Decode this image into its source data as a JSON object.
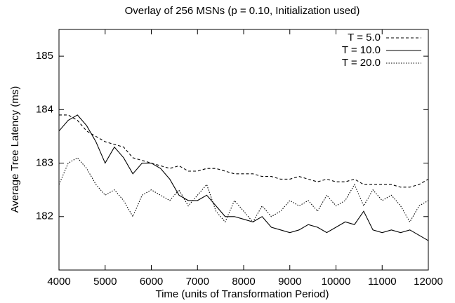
{
  "chart_data": {
    "type": "line",
    "title": "Overlay of 256 MSNs (p = 0.10, Initialization used)",
    "x_label": "Time (units of Transformation Period)",
    "y_label": "Average Tree Latency (ms)",
    "x": [
      4000,
      4200,
      4400,
      4600,
      4800,
      5000,
      5200,
      5400,
      5600,
      5800,
      6000,
      6200,
      6400,
      6600,
      6800,
      7000,
      7200,
      7400,
      7600,
      7800,
      8000,
      8200,
      8400,
      8600,
      8800,
      9000,
      9200,
      9400,
      9600,
      9800,
      10000,
      10200,
      10400,
      10600,
      10800,
      11000,
      11200,
      11400,
      11600,
      11800,
      12000
    ],
    "series": [
      {
        "name": "T = 5.0",
        "color": "#000000",
        "dash": "4,3",
        "values": [
          183.9,
          183.9,
          183.8,
          183.6,
          183.5,
          183.4,
          183.35,
          183.3,
          183.1,
          183.05,
          183.0,
          182.95,
          182.9,
          182.95,
          182.85,
          182.85,
          182.9,
          182.9,
          182.85,
          182.8,
          182.8,
          182.8,
          182.75,
          182.75,
          182.7,
          182.7,
          182.75,
          182.7,
          182.65,
          182.7,
          182.65,
          182.65,
          182.7,
          182.6,
          182.6,
          182.6,
          182.6,
          182.55,
          182.55,
          182.6,
          182.7
        ]
      },
      {
        "name": "T = 10.0",
        "color": "#000000",
        "dash": "none",
        "values": [
          183.6,
          183.8,
          183.9,
          183.7,
          183.4,
          183.0,
          183.3,
          183.1,
          182.8,
          183.0,
          183.0,
          182.9,
          182.7,
          182.4,
          182.3,
          182.3,
          182.4,
          182.2,
          182.0,
          182.0,
          181.95,
          181.9,
          182.0,
          181.8,
          181.75,
          181.7,
          181.75,
          181.85,
          181.8,
          181.7,
          181.8,
          181.9,
          181.85,
          182.1,
          181.75,
          181.7,
          181.75,
          181.7,
          181.75,
          181.65,
          181.55
        ]
      },
      {
        "name": "T = 20.0",
        "color": "#000000",
        "dash": "1.5,2",
        "values": [
          182.6,
          183.0,
          183.1,
          182.9,
          182.6,
          182.4,
          182.5,
          182.3,
          182.0,
          182.4,
          182.5,
          182.4,
          182.3,
          182.5,
          182.2,
          182.4,
          182.6,
          182.1,
          181.9,
          182.3,
          182.1,
          181.9,
          182.2,
          182.0,
          182.1,
          182.3,
          182.2,
          182.3,
          182.1,
          182.4,
          182.2,
          182.3,
          182.6,
          182.2,
          182.5,
          182.3,
          182.4,
          182.2,
          181.9,
          182.2,
          182.3
        ]
      }
    ],
    "xlim": [
      4000,
      12000
    ],
    "xticks": [
      4000,
      5000,
      6000,
      7000,
      8000,
      9000,
      10000,
      11000,
      12000
    ],
    "ylim": [
      181,
      185.5
    ],
    "yticks": [
      182,
      183,
      184,
      185
    ],
    "legend": "top-right"
  }
}
